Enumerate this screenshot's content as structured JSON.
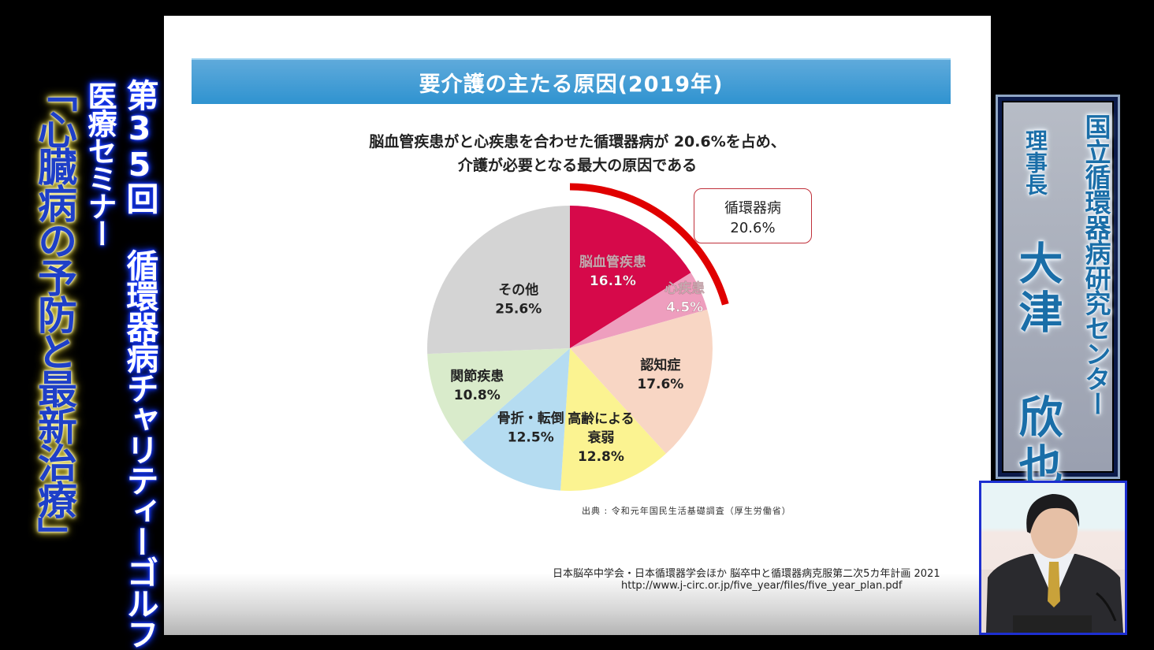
{
  "overlay": {
    "event_caption": "第35回 循環器病チャリティーゴルフ",
    "seminar_caption": "医療セミナー",
    "topic_caption": "「心臓病の予防と最新治療」"
  },
  "slide": {
    "title": "要介護の主たる原因(2019年)",
    "subtitle_line1": "脳血管疾患がと心疾患を合わせた循環器病が 20.6%を占め、",
    "subtitle_line2": "介護が必要となる最大の原因である",
    "callout_label": "循環器病",
    "callout_value": "20.6%",
    "source": "出典 : 令和元年国民生活基礎調査（厚生労働省）",
    "reference_line1": "日本脳卒中学会・日本循環器学会ほか 脳卒中と循環器病克服第二次5カ年計画 2021",
    "reference_line2": "http://www.j-circ.or.jp/five_year/files/five_year_plan.pdf"
  },
  "chart_data": {
    "type": "pie",
    "title": "要介護の主たる原因(2019年)",
    "start": "12 o'clock, clockwise",
    "slices": [
      {
        "label": "脳血管疾患",
        "value": 16.1,
        "value_label": "16.1%",
        "color": "#d6094a",
        "text_color": "#ffffff"
      },
      {
        "label": "心疾患",
        "value": 4.5,
        "value_label": "4.5%",
        "color": "#ee9ebe",
        "text_color": "#ffffff"
      },
      {
        "label": "認知症",
        "value": 17.6,
        "value_label": "17.6%",
        "color": "#f8d6c4",
        "text_color": "#222222"
      },
      {
        "label": "高齢による\n衰弱",
        "value": 12.8,
        "value_label": "12.8%",
        "color": "#fbf391",
        "text_color": "#222222"
      },
      {
        "label": "骨折・転倒",
        "value": 12.5,
        "value_label": "12.5%",
        "color": "#b5dcf1",
        "text_color": "#222222"
      },
      {
        "label": "関節疾患",
        "value": 10.8,
        "value_label": "10.8%",
        "color": "#d9ebcb",
        "text_color": "#222222"
      },
      {
        "label": "その他",
        "value": 25.6,
        "value_label": "25.6%",
        "color": "#d4d4d4",
        "text_color": "#222222"
      }
    ],
    "highlight_group": {
      "label": "循環器病",
      "value": 20.6,
      "value_label": "20.6%",
      "members": [
        "脳血管疾患",
        "心疾患"
      ],
      "color": "#e00000"
    }
  },
  "name_panel": {
    "organization": "国立循環器病研究センター",
    "role": "理事長",
    "name": "大津 欣也"
  },
  "colors": {
    "title_bar": "#3d9bd4",
    "caption_glow": "#1a3cff",
    "topic_glow": "#fff066",
    "name_text": "#1a6ea8"
  }
}
